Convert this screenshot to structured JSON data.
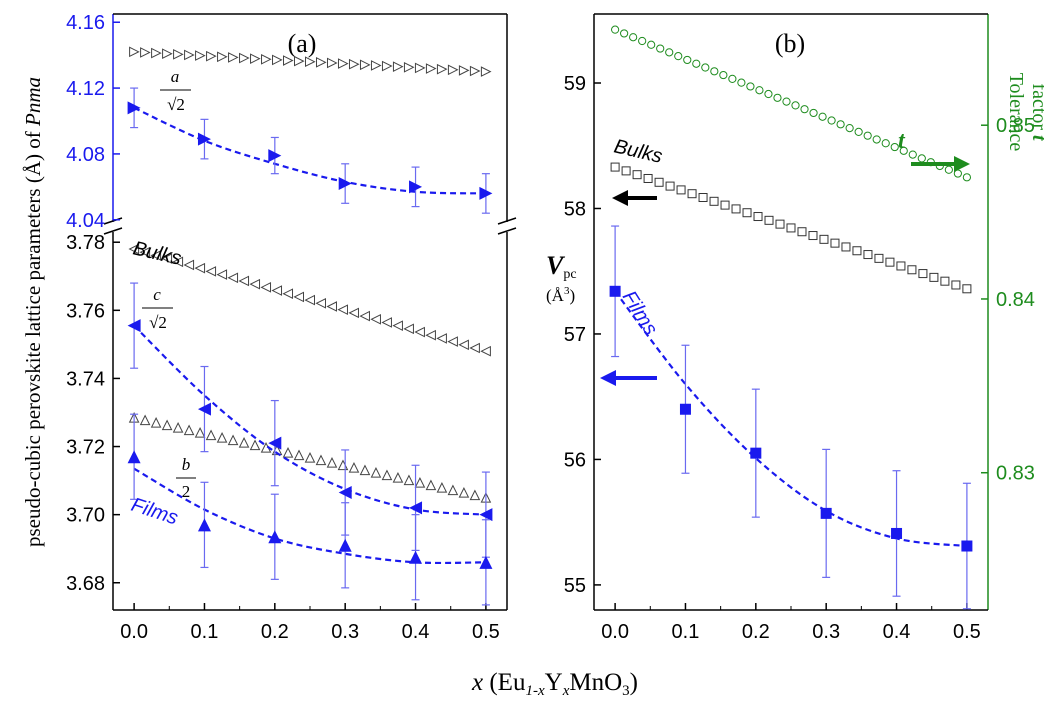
{
  "figure": {
    "xlabel_x": "x",
    "xlabel_open": "(Eu",
    "xlabel_sub1": "1-x",
    "xlabel_y": "Y",
    "xlabel_sub2": "x",
    "xlabel_tail": "MnO",
    "xlabel_sub3": "3",
    "xlabel_close": ")"
  },
  "chart_data": [
    {
      "type": "scatter",
      "panel_label": "(a)",
      "title": "",
      "xlabel": "x (Eu1-x Yx MnO3)",
      "ylabel_prefix": "pseudo-cubic perovskite lattice parameters (Å) of ",
      "ylabel_italic": "Pnma",
      "xlim": [
        -0.03,
        0.53
      ],
      "x_ticks": [
        "0.0",
        "0.1",
        "0.2",
        "0.3",
        "0.4",
        "0.5"
      ],
      "upper_ylim": [
        4.035,
        4.165
      ],
      "upper_y_ticks": [
        "4.04",
        "4.08",
        "4.12",
        "4.16"
      ],
      "lower_ylim": [
        3.672,
        3.783
      ],
      "lower_y_ticks": [
        "3.68",
        "3.70",
        "3.72",
        "3.74",
        "3.76",
        "3.78"
      ],
      "axis_break": true,
      "colors": {
        "films": "#1a1aee",
        "bulks": "#444444",
        "axis_upper": "#1a1aee",
        "axis_lower": "#000000"
      },
      "annotations": {
        "bulks": "Bulks",
        "films": "Films",
        "a_num": "a",
        "a_den": "√2",
        "c_num": "c",
        "c_den": "√2",
        "b_num": "b",
        "b_den": "2"
      },
      "series": [
        {
          "name": "a/√2 bulk",
          "marker": "open-triangle-right",
          "axis": "upper",
          "x": [
            0.0,
            0.5
          ],
          "y": [
            4.142,
            4.13
          ],
          "n_markers": 33
        },
        {
          "name": "c/√2 bulk",
          "marker": "open-triangle-left",
          "axis": "lower",
          "x": [
            0.0,
            0.5
          ],
          "y": [
            3.778,
            3.748
          ],
          "n_markers": 33
        },
        {
          "name": "b/2 bulk",
          "marker": "open-triangle-up",
          "axis": "lower",
          "x": [
            0.0,
            0.5
          ],
          "y": [
            3.7285,
            3.705
          ],
          "n_markers": 33
        },
        {
          "name": "a/√2 films",
          "marker": "filled-triangle-right",
          "axis": "upper",
          "x": [
            0.0,
            0.1,
            0.2,
            0.3,
            0.4,
            0.5
          ],
          "y": [
            4.108,
            4.089,
            4.079,
            4.062,
            4.06,
            4.056
          ],
          "err": [
            0.012,
            0.012,
            0.011,
            0.012,
            0.012,
            0.012
          ],
          "fit": [
            4.108,
            4.088,
            4.074,
            4.063,
            4.057,
            4.056
          ]
        },
        {
          "name": "c/√2 films",
          "marker": "filled-triangle-left",
          "axis": "lower",
          "x": [
            0.0,
            0.1,
            0.2,
            0.3,
            0.4,
            0.5
          ],
          "y": [
            3.7555,
            3.731,
            3.721,
            3.7065,
            3.702,
            3.7
          ],
          "err": [
            0.0125,
            0.0125,
            0.0125,
            0.0125,
            0.0125,
            0.0125
          ],
          "fit": [
            3.7555,
            3.735,
            3.7185,
            3.7075,
            3.7015,
            3.7
          ]
        },
        {
          "name": "b/2 films",
          "marker": "filled-triangle-up",
          "axis": "lower",
          "x": [
            0.0,
            0.1,
            0.2,
            0.3,
            0.4,
            0.5
          ],
          "y": [
            3.717,
            3.697,
            3.6935,
            3.691,
            3.6875,
            3.686
          ],
          "err": [
            0.0125,
            0.0125,
            0.0125,
            0.0125,
            0.0125,
            0.0125
          ],
          "fit": [
            3.7135,
            3.7015,
            3.693,
            3.6885,
            3.686,
            3.686
          ]
        }
      ]
    },
    {
      "type": "scatter",
      "panel_label": "(b)",
      "title": "",
      "xlabel": "x (Eu1-x Yx MnO3)",
      "ylabel_main": "V",
      "ylabel_sub": "pc",
      "ylabel_unit": "(Å",
      "ylabel_unit_sup": "3",
      "ylabel_unit_close": ")",
      "ylabel_right_1": "Tolerance",
      "ylabel_right_2": "factor ",
      "ylabel_right_italic": "t",
      "xlim": [
        -0.03,
        0.53
      ],
      "x_ticks": [
        "0.0",
        "0.1",
        "0.2",
        "0.3",
        "0.4",
        "0.5"
      ],
      "ylim": [
        54.8,
        59.55
      ],
      "y_ticks": [
        "55",
        "56",
        "57",
        "58",
        "59"
      ],
      "y2lim": [
        0.8221,
        0.8564
      ],
      "y2_ticks": [
        "0.83",
        "0.84",
        "0.85"
      ],
      "colors": {
        "films": "#1a1aee",
        "bulks": "#333333",
        "tolerance": "#1e8c1e",
        "axis_right": "#1e8c1e"
      },
      "annotations": {
        "bulks": "Bulks",
        "films": "Films",
        "t": "t"
      },
      "series": [
        {
          "name": "V_pc bulk",
          "marker": "open-square",
          "axis": "left",
          "x": [
            0.0,
            0.5
          ],
          "y": [
            58.33,
            57.36
          ],
          "n_markers": 33
        },
        {
          "name": "tolerance factor t",
          "marker": "open-circle",
          "axis": "right",
          "x": [
            0.0,
            0.5
          ],
          "y": [
            0.8555,
            0.847
          ],
          "n_markers": 40
        },
        {
          "name": "V_pc films",
          "marker": "filled-square",
          "axis": "left",
          "x": [
            0.0,
            0.1,
            0.2,
            0.3,
            0.4,
            0.5
          ],
          "y": [
            57.34,
            56.4,
            56.05,
            55.57,
            55.41,
            55.31
          ],
          "err": [
            0.52,
            0.51,
            0.51,
            0.51,
            0.5,
            0.5
          ],
          "fit": [
            57.34,
            56.6,
            56.01,
            55.59,
            55.37,
            55.31
          ]
        }
      ]
    }
  ]
}
